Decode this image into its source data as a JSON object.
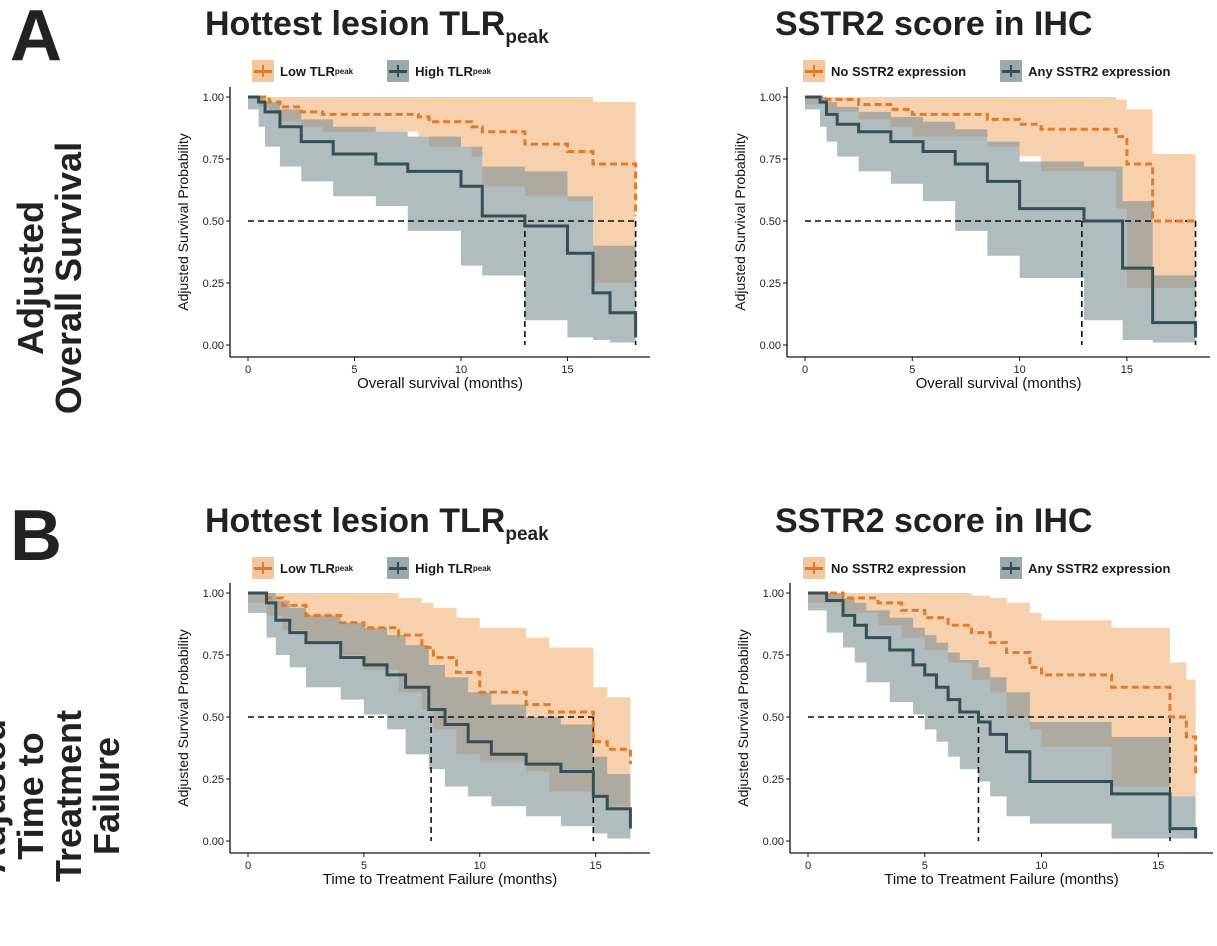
{
  "panels": [
    {
      "letter": "A",
      "row_label": [
        "Adjusted",
        "Overall Survival"
      ]
    },
    {
      "letter": "B",
      "row_label": [
        "Adjusted",
        "Time to Treatment",
        "Failure"
      ]
    }
  ],
  "colors": {
    "low": "#e07b2a",
    "high": "#344f55",
    "low_band": "#f2b883",
    "high_band": "#7d9094",
    "overlap": "#b08a6a"
  },
  "chart_data": [
    {
      "id": "A-left",
      "type": "line",
      "title": "Hottest lesion TLR",
      "title_sub": "peak",
      "xlabel": "Overall survival (months)",
      "ylabel": "Adjusted Survival Probability",
      "xlim": [
        0,
        18.5
      ],
      "ylim": [
        0,
        1
      ],
      "xticks": [
        0,
        5,
        10,
        15
      ],
      "yticks": [
        0.0,
        0.25,
        0.5,
        0.75,
        1.0
      ],
      "legend": [
        {
          "label": "Low TLR",
          "sub": "peak"
        },
        {
          "label": "High TLR",
          "sub": "peak"
        }
      ],
      "median_lines": [
        13.0,
        18.2
      ],
      "series": [
        {
          "name": "Low TLR",
          "style": "dashed",
          "x": [
            0,
            0.5,
            1.0,
            1.5,
            2.5,
            3.5,
            8.0,
            8.5,
            10.5,
            11.0,
            13.0,
            15.0,
            16.2,
            18.2
          ],
          "y": [
            1.0,
            1.0,
            0.98,
            0.96,
            0.94,
            0.93,
            0.92,
            0.9,
            0.88,
            0.86,
            0.81,
            0.78,
            0.73,
            0.52
          ],
          "upper": [
            1.0,
            1.0,
            1.0,
            1.0,
            1.0,
            1.0,
            1.0,
            1.0,
            1.0,
            1.0,
            1.0,
            1.0,
            0.98,
            0.81
          ],
          "lower": [
            1.0,
            1.0,
            0.96,
            0.93,
            0.9,
            0.88,
            0.86,
            0.84,
            0.8,
            0.76,
            0.64,
            0.6,
            0.58,
            0.25
          ]
        },
        {
          "name": "High TLR",
          "style": "solid",
          "x": [
            0,
            0.5,
            0.8,
            1.5,
            2.5,
            4.0,
            6.0,
            7.5,
            10.0,
            11.0,
            13.0,
            15.0,
            16.2,
            17.0,
            18.2
          ],
          "y": [
            1.0,
            0.98,
            0.94,
            0.88,
            0.82,
            0.77,
            0.73,
            0.7,
            0.64,
            0.52,
            0.48,
            0.37,
            0.21,
            0.13,
            0.03
          ],
          "upper": [
            1.0,
            1.0,
            0.98,
            0.95,
            0.91,
            0.88,
            0.86,
            0.84,
            0.8,
            0.72,
            0.7,
            0.6,
            0.4,
            0.4,
            0.4
          ],
          "lower": [
            1.0,
            0.95,
            0.88,
            0.8,
            0.72,
            0.66,
            0.6,
            0.56,
            0.46,
            0.32,
            0.28,
            0.1,
            0.03,
            0.02,
            0.01
          ]
        }
      ]
    },
    {
      "id": "A-right",
      "type": "line",
      "title": "SSTR2 score in IHC",
      "title_sub": "",
      "xlabel": "Overall survival (months)",
      "ylabel": "Adjusted Survival Probability",
      "xlim": [
        0,
        18.5
      ],
      "ylim": [
        0,
        1
      ],
      "xticks": [
        0,
        5,
        10,
        15
      ],
      "yticks": [
        0.0,
        0.25,
        0.5,
        0.75,
        1.0
      ],
      "legend": [
        {
          "label": "No SSTR2 expression",
          "sub": ""
        },
        {
          "label": "Any SSTR2 expression",
          "sub": ""
        }
      ],
      "median_lines": [
        12.9,
        18.2
      ],
      "series": [
        {
          "name": "No SSTR2 expression",
          "style": "dashed",
          "x": [
            0,
            1.0,
            2.5,
            4.0,
            5.0,
            8.5,
            10.0,
            11.0,
            14.5,
            15.0,
            16.2,
            18.2
          ],
          "y": [
            1.0,
            0.99,
            0.97,
            0.95,
            0.93,
            0.91,
            0.89,
            0.87,
            0.84,
            0.73,
            0.5,
            0.5
          ],
          "upper": [
            1.0,
            1.0,
            1.0,
            1.0,
            1.0,
            1.0,
            1.0,
            1.0,
            0.99,
            0.95,
            0.77,
            0.77
          ],
          "lower": [
            1.0,
            0.97,
            0.94,
            0.91,
            0.88,
            0.84,
            0.8,
            0.76,
            0.7,
            0.55,
            0.23,
            0.23
          ]
        },
        {
          "name": "Any SSTR2 expression",
          "style": "solid",
          "x": [
            0,
            0.7,
            1.0,
            1.5,
            2.5,
            4.0,
            5.5,
            7.0,
            8.5,
            10.0,
            13.0,
            14.8,
            16.2,
            18.2
          ],
          "y": [
            1.0,
            0.98,
            0.93,
            0.89,
            0.86,
            0.82,
            0.78,
            0.73,
            0.66,
            0.55,
            0.5,
            0.31,
            0.09,
            0.03
          ],
          "upper": [
            1.0,
            1.0,
            0.98,
            0.96,
            0.94,
            0.92,
            0.9,
            0.87,
            0.82,
            0.74,
            0.72,
            0.58,
            0.28,
            0.28
          ],
          "lower": [
            1.0,
            0.95,
            0.88,
            0.82,
            0.76,
            0.7,
            0.65,
            0.58,
            0.46,
            0.36,
            0.27,
            0.1,
            0.02,
            0.01
          ]
        }
      ]
    },
    {
      "id": "B-left",
      "type": "line",
      "title": "Hottest lesion TLR",
      "title_sub": "peak",
      "xlabel": "Time to Treatment Failure (months)",
      "ylabel": "Adjusted Survival Probability",
      "xlim": [
        0,
        17
      ],
      "ylim": [
        0,
        1
      ],
      "xticks": [
        0,
        5,
        10,
        15
      ],
      "yticks": [
        0.0,
        0.25,
        0.5,
        0.75,
        1.0
      ],
      "legend": [
        {
          "label": "Low TLR",
          "sub": "peak"
        },
        {
          "label": "High TLR",
          "sub": "peak"
        }
      ],
      "median_lines": [
        7.9,
        14.9
      ],
      "series": [
        {
          "name": "Low TLR",
          "style": "dashed",
          "x": [
            0,
            0.8,
            1.5,
            2.5,
            4.0,
            5.0,
            6.5,
            7.5,
            8.0,
            9.0,
            10.0,
            12.0,
            13.0,
            14.9,
            15.5,
            16.5
          ],
          "y": [
            1.0,
            0.98,
            0.95,
            0.91,
            0.88,
            0.86,
            0.83,
            0.78,
            0.74,
            0.68,
            0.6,
            0.55,
            0.52,
            0.4,
            0.37,
            0.31
          ],
          "upper": [
            1.0,
            1.0,
            1.0,
            1.0,
            1.0,
            1.0,
            0.98,
            0.96,
            0.94,
            0.9,
            0.86,
            0.82,
            0.78,
            0.62,
            0.58,
            0.54
          ],
          "lower": [
            1.0,
            0.96,
            0.91,
            0.85,
            0.8,
            0.75,
            0.69,
            0.6,
            0.53,
            0.45,
            0.35,
            0.32,
            0.28,
            0.2,
            0.18,
            0.14
          ]
        },
        {
          "name": "High TLR",
          "style": "solid",
          "x": [
            0,
            0.8,
            1.2,
            1.8,
            2.5,
            4.0,
            5.0,
            6.0,
            6.8,
            7.8,
            8.5,
            9.5,
            10.5,
            12.0,
            13.5,
            14.9,
            15.5,
            16.5
          ],
          "y": [
            1.0,
            0.96,
            0.89,
            0.84,
            0.8,
            0.74,
            0.71,
            0.67,
            0.62,
            0.53,
            0.47,
            0.4,
            0.35,
            0.31,
            0.28,
            0.18,
            0.13,
            0.05
          ],
          "upper": [
            1.0,
            1.0,
            0.97,
            0.94,
            0.91,
            0.88,
            0.86,
            0.83,
            0.79,
            0.71,
            0.66,
            0.6,
            0.55,
            0.5,
            0.47,
            0.34,
            0.27,
            0.22
          ],
          "lower": [
            1.0,
            0.92,
            0.82,
            0.75,
            0.7,
            0.62,
            0.57,
            0.51,
            0.45,
            0.35,
            0.29,
            0.22,
            0.18,
            0.14,
            0.1,
            0.06,
            0.03,
            0.01
          ]
        }
      ]
    },
    {
      "id": "B-right",
      "type": "line",
      "title": "SSTR2 score in IHC",
      "title_sub": "",
      "xlabel": "Time to Treatment Failure (months)",
      "ylabel": "Adjusted Survival Probability",
      "xlim": [
        0,
        17
      ],
      "ylim": [
        0,
        1
      ],
      "xticks": [
        0,
        5,
        10,
        15
      ],
      "yticks": [
        0.0,
        0.25,
        0.5,
        0.75,
        1.0
      ],
      "legend": [
        {
          "label": "No SSTR2 expression",
          "sub": ""
        },
        {
          "label": "Any SSTR2 expression",
          "sub": ""
        }
      ],
      "median_lines": [
        7.3,
        15.5
      ],
      "series": [
        {
          "name": "No SSTR2 expression",
          "style": "dashed",
          "x": [
            0,
            1.5,
            3.0,
            4.0,
            5.0,
            6.0,
            7.0,
            7.8,
            8.5,
            9.5,
            10.0,
            13.0,
            15.5,
            16.2,
            16.6
          ],
          "y": [
            1.0,
            0.98,
            0.96,
            0.93,
            0.9,
            0.87,
            0.84,
            0.8,
            0.76,
            0.7,
            0.67,
            0.62,
            0.5,
            0.42,
            0.26
          ],
          "upper": [
            1.0,
            1.0,
            1.0,
            1.0,
            1.0,
            1.0,
            0.99,
            0.98,
            0.96,
            0.92,
            0.89,
            0.86,
            0.72,
            0.65,
            0.65
          ],
          "lower": [
            1.0,
            0.96,
            0.92,
            0.87,
            0.82,
            0.77,
            0.72,
            0.65,
            0.6,
            0.5,
            0.45,
            0.38,
            0.22,
            0.18,
            0.18
          ]
        },
        {
          "name": "Any SSTR2 expression",
          "style": "solid",
          "x": [
            0,
            0.8,
            1.5,
            2.0,
            2.5,
            3.5,
            4.5,
            5.0,
            5.5,
            6.0,
            6.5,
            7.3,
            7.8,
            8.5,
            9.5,
            13.0,
            15.5,
            16.6
          ],
          "y": [
            1.0,
            0.97,
            0.91,
            0.87,
            0.82,
            0.77,
            0.71,
            0.67,
            0.62,
            0.57,
            0.52,
            0.48,
            0.43,
            0.36,
            0.24,
            0.19,
            0.05,
            0.01
          ],
          "upper": [
            1.0,
            1.0,
            0.98,
            0.96,
            0.93,
            0.9,
            0.86,
            0.83,
            0.8,
            0.76,
            0.73,
            0.7,
            0.66,
            0.6,
            0.48,
            0.42,
            0.18,
            0.18
          ],
          "lower": [
            1.0,
            0.93,
            0.84,
            0.78,
            0.72,
            0.64,
            0.56,
            0.51,
            0.45,
            0.4,
            0.34,
            0.29,
            0.24,
            0.18,
            0.1,
            0.07,
            0.01,
            0.01
          ]
        }
      ]
    }
  ]
}
